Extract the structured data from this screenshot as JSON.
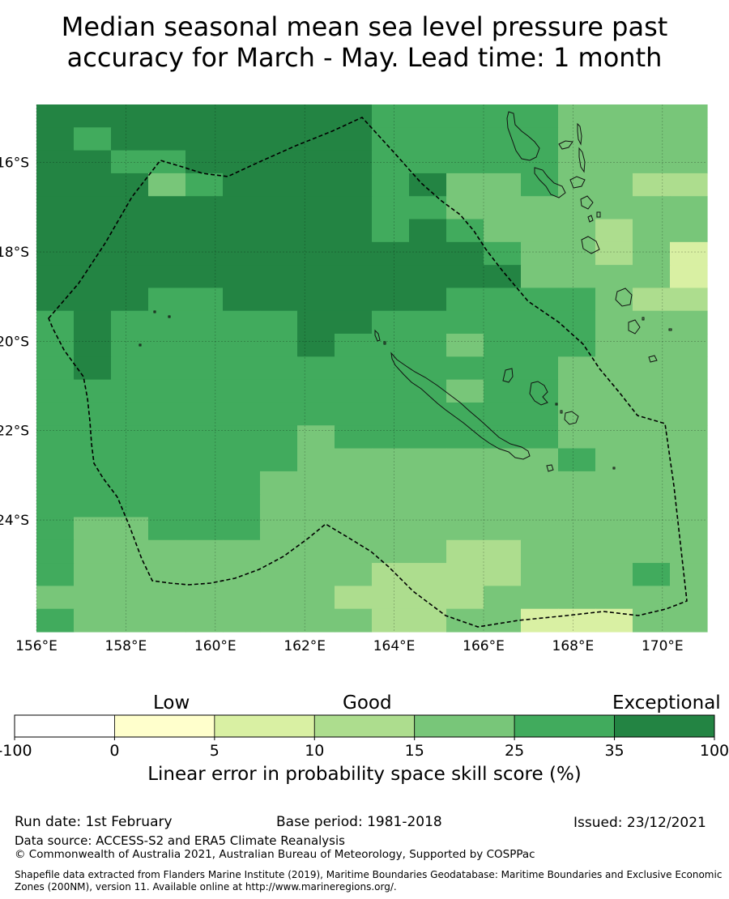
{
  "title": {
    "line1": "Median seasonal mean sea level pressure past",
    "line2": "accuracy for March - May. Lead time: 1 month"
  },
  "map": {
    "lon_range": [
      156,
      171
    ],
    "lat_range": [
      -26.5,
      -14.7
    ],
    "x_ticks": [
      156,
      158,
      160,
      162,
      164,
      166,
      168,
      170
    ],
    "x_tick_labels": [
      "156°E",
      "158°E",
      "160°E",
      "162°E",
      "164°E",
      "166°E",
      "168°E",
      "170°E"
    ],
    "y_ticks": [
      -16,
      -18,
      -20,
      -22,
      -24
    ],
    "y_tick_labels": [
      "16°S",
      "18°S",
      "20°S",
      "22°S",
      "24°S"
    ],
    "grid": true,
    "skill_grid_rows_top_to_bottom": [
      [
        6,
        6,
        6,
        6,
        6,
        6,
        6,
        6,
        6,
        5,
        5,
        5,
        5,
        5,
        4,
        4,
        4,
        4
      ],
      [
        6,
        5,
        6,
        6,
        6,
        6,
        6,
        6,
        6,
        5,
        5,
        5,
        5,
        5,
        4,
        4,
        4,
        4
      ],
      [
        6,
        6,
        5,
        5,
        6,
        6,
        6,
        6,
        6,
        5,
        5,
        5,
        5,
        5,
        4,
        4,
        4,
        4
      ],
      [
        6,
        6,
        6,
        4,
        5,
        6,
        6,
        6,
        6,
        5,
        6,
        4,
        4,
        5,
        4,
        4,
        3,
        3
      ],
      [
        6,
        6,
        6,
        6,
        6,
        6,
        6,
        6,
        6,
        5,
        5,
        4,
        4,
        4,
        4,
        4,
        4,
        4
      ],
      [
        6,
        6,
        6,
        6,
        6,
        6,
        6,
        6,
        6,
        5,
        6,
        5,
        4,
        4,
        4,
        3,
        4,
        4
      ],
      [
        6,
        6,
        6,
        6,
        6,
        6,
        6,
        6,
        6,
        6,
        6,
        6,
        5,
        4,
        4,
        3,
        4,
        2
      ],
      [
        6,
        6,
        6,
        6,
        6,
        6,
        6,
        6,
        6,
        6,
        6,
        6,
        6,
        4,
        4,
        4,
        4,
        2
      ],
      [
        6,
        6,
        6,
        5,
        5,
        6,
        6,
        6,
        6,
        6,
        6,
        5,
        5,
        5,
        5,
        4,
        3,
        3
      ],
      [
        5,
        6,
        5,
        5,
        5,
        5,
        5,
        6,
        6,
        5,
        5,
        5,
        5,
        5,
        5,
        4,
        4,
        4
      ],
      [
        5,
        6,
        5,
        5,
        5,
        5,
        5,
        6,
        5,
        5,
        5,
        4,
        5,
        5,
        5,
        4,
        4,
        4
      ],
      [
        5,
        6,
        5,
        5,
        5,
        5,
        5,
        5,
        5,
        5,
        5,
        5,
        5,
        5,
        4,
        4,
        4,
        4
      ],
      [
        5,
        5,
        5,
        5,
        5,
        5,
        5,
        5,
        5,
        5,
        5,
        4,
        5,
        5,
        4,
        4,
        4,
        4
      ],
      [
        5,
        5,
        5,
        5,
        5,
        5,
        5,
        5,
        5,
        5,
        5,
        5,
        5,
        5,
        4,
        4,
        4,
        4
      ],
      [
        5,
        5,
        5,
        5,
        5,
        5,
        5,
        4,
        5,
        5,
        5,
        5,
        5,
        5,
        4,
        4,
        4,
        4
      ],
      [
        5,
        5,
        5,
        5,
        5,
        5,
        5,
        4,
        4,
        4,
        4,
        4,
        4,
        4,
        5,
        4,
        4,
        4
      ],
      [
        5,
        5,
        5,
        5,
        5,
        5,
        4,
        4,
        4,
        4,
        4,
        4,
        4,
        4,
        4,
        4,
        4,
        4
      ],
      [
        5,
        5,
        5,
        5,
        5,
        5,
        4,
        4,
        4,
        4,
        4,
        4,
        4,
        4,
        4,
        4,
        4,
        4
      ],
      [
        5,
        4,
        4,
        5,
        5,
        5,
        4,
        4,
        4,
        4,
        4,
        4,
        4,
        4,
        4,
        4,
        4,
        4
      ],
      [
        5,
        4,
        4,
        4,
        4,
        4,
        4,
        4,
        4,
        4,
        4,
        3,
        3,
        4,
        4,
        4,
        4,
        4
      ],
      [
        5,
        4,
        4,
        4,
        4,
        4,
        4,
        4,
        4,
        3,
        3,
        3,
        3,
        4,
        4,
        4,
        5,
        4
      ],
      [
        4,
        4,
        4,
        4,
        4,
        4,
        4,
        4,
        3,
        3,
        3,
        3,
        4,
        4,
        4,
        4,
        4,
        4
      ],
      [
        5,
        4,
        4,
        4,
        4,
        4,
        4,
        4,
        4,
        3,
        3,
        4,
        4,
        2,
        2,
        2,
        4,
        4
      ]
    ]
  },
  "colorbar": {
    "colors": [
      "#ffffff",
      "#ffffcc",
      "#d9f0a3",
      "#addd8e",
      "#78c679",
      "#41ab5d",
      "#238443"
    ],
    "tick_labels": [
      "-100",
      "0",
      "5",
      "10",
      "15",
      "25",
      "35",
      "100"
    ],
    "categories": [
      "Low",
      "Good",
      "Exceptional"
    ],
    "label": "Linear error in probability space skill score (%)"
  },
  "footer": {
    "run_date": "Run date: 1st February",
    "base_period": "Base period: 1981-2018",
    "issued": "Issued: 23/12/2021",
    "data_source": "Data source: ACCESS-S2 and ERA5 Climate Reanalysis",
    "copyright": "© Commonwealth of Australia 2021, Australian Bureau of Meteorology, Supported by COSPPac",
    "shapefile_line1": "Shapefile data extracted from Flanders Marine Institute (2019), Maritime Boundaries Geodatabase: Maritime Boundaries and Exclusive Economic",
    "shapefile_line2": "Zones (200NM), version 11. Available online at http://www.marineregions.org/."
  }
}
